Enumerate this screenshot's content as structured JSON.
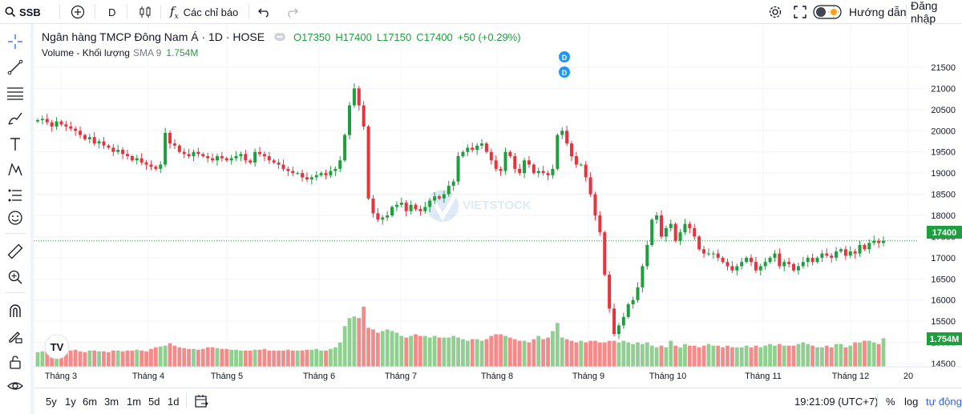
{
  "toolbar": {
    "symbol": "SSB",
    "interval": "D",
    "indicators_label": "Các chỉ báo",
    "guide_label": "Hướng dẫn",
    "login_label": "Đăng nhập"
  },
  "legend": {
    "title": "Ngân hàng TMCP Đông Nam Á · 1D · HOSE",
    "open": "O17350",
    "high": "H17400",
    "low": "L17150",
    "close": "C17400",
    "change": "+50 (+0.29%)",
    "volume_name": "Volume - Khối lượng",
    "volume_ma": "SMA 9",
    "volume_value": "1.754M"
  },
  "watermark": "VIETSTOCK",
  "dividend_marker": "D",
  "bottom": {
    "ranges": [
      "5y",
      "1y",
      "6m",
      "3m",
      "1m",
      "5d",
      "1d"
    ],
    "time": "19:21:09 (UTC+7)",
    "percent": "%",
    "log": "log",
    "auto": "tự động"
  },
  "chart_data": {
    "type": "candlestick",
    "title": "Ngân hàng TMCP Đông Nam Á · 1D · HOSE",
    "y_ticks": [
      14500,
      15000,
      15500,
      16000,
      16500,
      17000,
      17500,
      18000,
      18500,
      19000,
      19500,
      20000,
      20500,
      21000,
      21500
    ],
    "ylim": [
      14400,
      21700
    ],
    "x_labels": [
      "Tháng 3",
      "Tháng 4",
      "Tháng 5",
      "Tháng 6",
      "Tháng 7",
      "Tháng 8",
      "Tháng 9",
      "Tháng 10",
      "Tháng 11",
      "Tháng 12",
      "20"
    ],
    "last_price": 17400,
    "last_price_label": "17400",
    "last_volume_label": "1.754M",
    "colors": {
      "up": "#26a69a",
      "up_candle": "#1e9e3e",
      "down": "#e8323c",
      "vol_up": "#8fcf8f",
      "vol_down": "#f48a8a"
    },
    "close_series": [
      20250,
      20280,
      20200,
      20100,
      20220,
      20150,
      20100,
      20050,
      20000,
      19900,
      19800,
      19850,
      19700,
      19750,
      19650,
      19600,
      19500,
      19550,
      19450,
      19400,
      19300,
      19350,
      19250,
      19200,
      19150,
      19100,
      19200,
      19950,
      19700,
      19650,
      19500,
      19450,
      19400,
      19500,
      19450,
      19400,
      19350,
      19300,
      19400,
      19350,
      19300,
      19350,
      19400,
      19450,
      19300,
      19250,
      19500,
      19450,
      19400,
      19300,
      19250,
      19200,
      19100,
      19050,
      19000,
      19000,
      18900,
      18850,
      18900,
      18950,
      19000,
      18950,
      19050,
      19100,
      19300,
      19900,
      20600,
      21000,
      20600,
      20100,
      18400,
      18050,
      17900,
      17950,
      18000,
      18200,
      18250,
      18300,
      18100,
      18250,
      18150,
      18100,
      18200,
      18350,
      18450,
      18400,
      18500,
      18700,
      18800,
      19400,
      19500,
      19600,
      19550,
      19650,
      19700,
      19500,
      19300,
      19100,
      19050,
      19500,
      19400,
      19100,
      19000,
      19300,
      19200,
      19000,
      19050,
      19000,
      18950,
      19100,
      19900,
      20000,
      19700,
      19400,
      19200,
      19200,
      18900,
      18500,
      18000,
      17600,
      16600,
      15800,
      15200,
      15400,
      15600,
      15900,
      16000,
      16300,
      16800,
      17300,
      17900,
      18000,
      17500,
      17700,
      17800,
      17400,
      17600,
      17800,
      17700,
      17500,
      17200,
      17100,
      17100,
      17100,
      17000,
      16900,
      16800,
      16700,
      16800,
      16900,
      17000,
      16900,
      16700,
      16800,
      16900,
      17000,
      17100,
      16800,
      16900,
      16850,
      16700,
      16800,
      16900,
      17000,
      16900,
      17000,
      17100,
      17050,
      17000,
      17150,
      17200,
      17050,
      17150,
      17100,
      17300,
      17200,
      17350,
      17400,
      17350,
      17400
    ],
    "volume_series": [
      0.9,
      0.95,
      1.0,
      0.95,
      1.0,
      0.9,
      0.95,
      1.0,
      1.05,
      0.95,
      0.9,
      1.0,
      1.0,
      0.95,
      0.95,
      0.9,
      1.0,
      1.0,
      0.95,
      1.0,
      1.0,
      1.05,
      1.0,
      0.95,
      1.1,
      1.2,
      1.25,
      1.3,
      1.45,
      1.3,
      1.2,
      1.15,
      1.1,
      1.1,
      1.05,
      1.1,
      1.2,
      1.2,
      1.15,
      1.1,
      1.1,
      1.05,
      1.05,
      1.0,
      1.0,
      1.0,
      1.05,
      1.05,
      1.1,
      1.0,
      1.0,
      1.0,
      1.0,
      1.05,
      1.0,
      1.0,
      1.0,
      1.05,
      1.05,
      1.1,
      1.0,
      1.0,
      1.1,
      1.2,
      1.5,
      2.5,
      3.0,
      3.1,
      3.0,
      3.7,
      2.4,
      2.3,
      2.1,
      2.2,
      2.3,
      2.2,
      2.1,
      1.9,
      1.8,
      1.9,
      2.0,
      1.9,
      1.9,
      1.8,
      1.9,
      1.8,
      1.8,
      1.8,
      1.9,
      1.8,
      1.7,
      1.6,
      1.7,
      1.7,
      1.6,
      1.7,
      1.9,
      2.0,
      2.0,
      1.9,
      1.8,
      1.7,
      1.6,
      1.6,
      1.5,
      1.7,
      1.9,
      1.7,
      1.8,
      2.2,
      2.7,
      1.8,
      1.7,
      1.6,
      1.5,
      1.6,
      1.5,
      1.6,
      1.6,
      1.5,
      1.5,
      1.6,
      1.6,
      1.5,
      1.6,
      1.5,
      1.4,
      1.5,
      1.4,
      1.5,
      1.3,
      1.2,
      1.3,
      1.2,
      1.6,
      1.3,
      1.2,
      1.4,
      1.3,
      1.3,
      1.2,
      1.3,
      1.4,
      1.3,
      1.3,
      1.2,
      1.3,
      1.2,
      1.2,
      1.2,
      1.3,
      1.2,
      1.3,
      1.2,
      1.3,
      1.4,
      1.3,
      1.4,
      1.3,
      1.3,
      1.3,
      1.4,
      1.5,
      1.4,
      1.3,
      1.2,
      1.2,
      1.3,
      1.2,
      1.4,
      1.4,
      1.2,
      1.3,
      1.5,
      1.5,
      1.6,
      1.6,
      1.5,
      1.4,
      1.754
    ]
  }
}
